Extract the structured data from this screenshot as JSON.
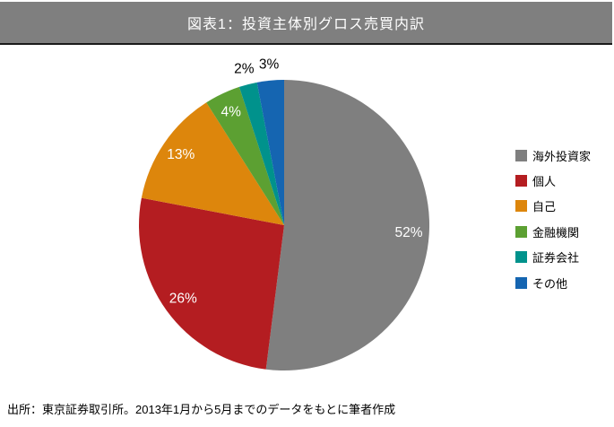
{
  "header": {
    "title": "図表1：投資主体別グロス売買内訳"
  },
  "footer": {
    "source": "出所：東京証券取引所。2013年1月から5月までのデータをもとに筆者作成"
  },
  "colors": {
    "page_bg": "#FFFFFF",
    "title_bar_bg": "#7F7F7F",
    "title_text": "#FFFFFF",
    "title_bar_border": "#1A1A1A",
    "inside_label_color": "#FFFFFF",
    "outside_label_color": "#000000"
  },
  "chart_data": {
    "type": "pie",
    "title": "図表1：投資主体別グロス売買内訳",
    "categories": [
      "海外投資家",
      "個人",
      "自己",
      "金融機関",
      "証券会社",
      "その他"
    ],
    "values": [
      52,
      26,
      13,
      4,
      2,
      3
    ],
    "data_labels": [
      "52%",
      "26%",
      "13%",
      "4%",
      "2%",
      "3%"
    ],
    "slice_colors": [
      "#7F7F7F",
      "#B41D21",
      "#DD860C",
      "#5CA032",
      "#00928C",
      "#1565B1"
    ],
    "label_positions": [
      "inside",
      "inside",
      "inside",
      "inside",
      "outside",
      "outside"
    ],
    "start_angle_deg": 0,
    "direction": "clockwise",
    "legend_position": "right",
    "source_note": "出所：東京証券取引所。2013年1月から5月までのデータをもとに筆者作成"
  }
}
